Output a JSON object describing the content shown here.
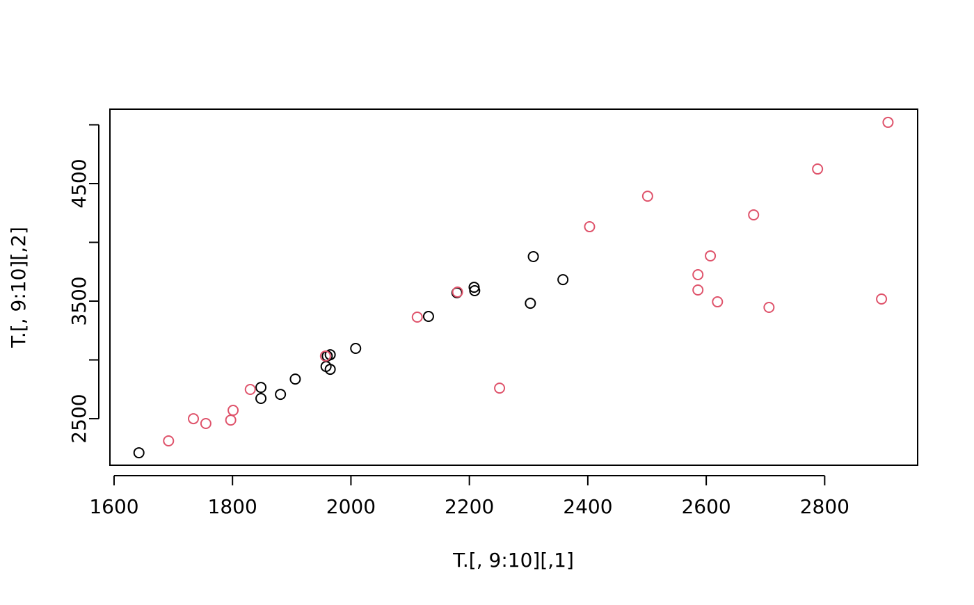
{
  "chart_data": {
    "type": "scatter",
    "xlabel": "T.[, 9:10][,1]",
    "ylabel": "T.[, 9:10][,2]",
    "xlim": [
      1593,
      2957
    ],
    "ylim": [
      2104,
      5133
    ],
    "xticks": [
      1600,
      1800,
      2000,
      2200,
      2400,
      2600,
      2800
    ],
    "yticks": [
      2500,
      {
        "value": 3000,
        "label": null
      },
      3500,
      {
        "value": 4000,
        "label": null
      },
      4500,
      {
        "value": 5000,
        "label": null
      }
    ],
    "series": [
      {
        "color": "#000000",
        "x": [
          1642,
          1848,
          1848,
          1881,
          1906,
          1958,
          1965,
          1965,
          1960,
          2008,
          2131,
          2179,
          2208,
          2209,
          2303,
          2308,
          2358
        ],
        "y": [
          2210,
          2766,
          2672,
          2707,
          2837,
          2944,
          2920,
          3044,
          3033,
          3098,
          3370,
          3571,
          3618,
          3589,
          3482,
          3879,
          3683
        ]
      },
      {
        "color": "#df536b",
        "x": [
          1692,
          1734,
          1755,
          1797,
          1801,
          1830,
          1957,
          2112,
          2180,
          2251,
          2403,
          2501,
          2586,
          2586,
          2607,
          2619,
          2680,
          2706,
          2788,
          2896,
          2907
        ],
        "y": [
          2311,
          2500,
          2459,
          2488,
          2571,
          2749,
          3033,
          3364,
          3577,
          2760,
          4133,
          4393,
          3725,
          3595,
          3885,
          3494,
          4234,
          3447,
          4624,
          3518,
          5021
        ]
      }
    ]
  }
}
